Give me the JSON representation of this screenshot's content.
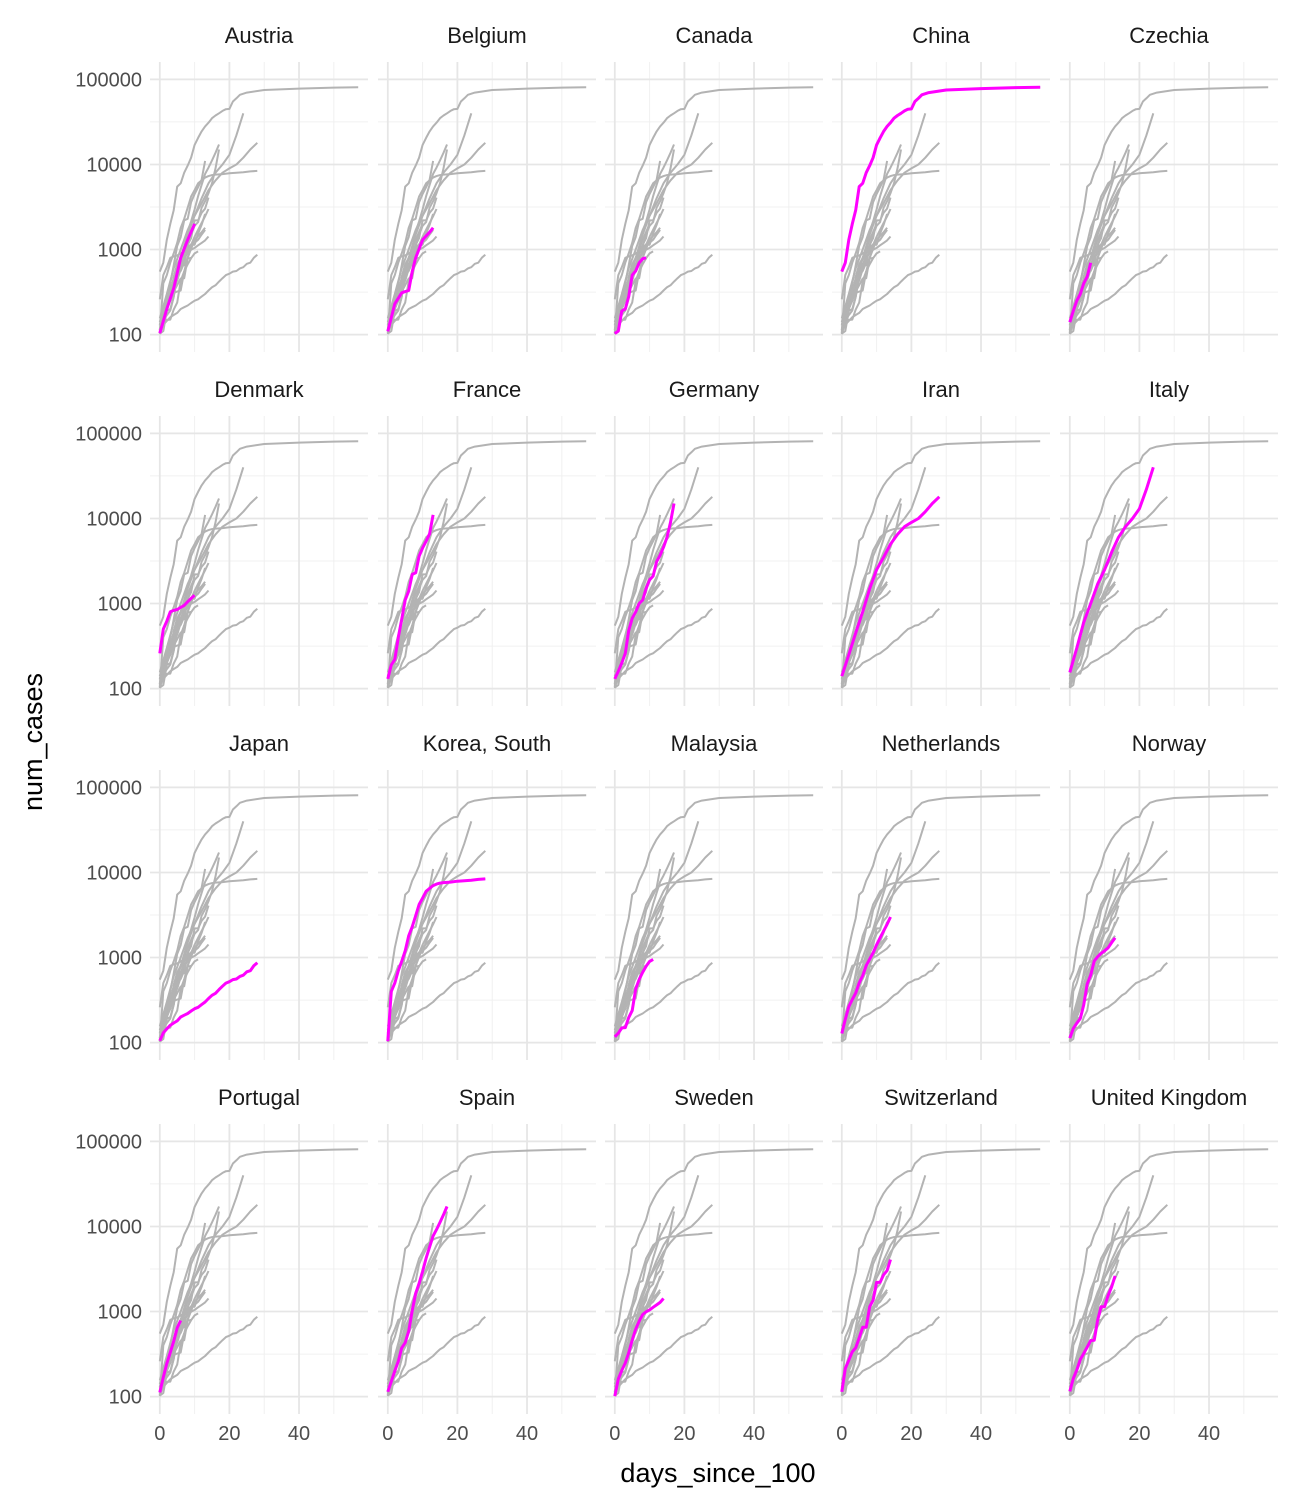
{
  "chart_data": {
    "type": "line",
    "facet_by": "country",
    "facet_layout": {
      "rows": 4,
      "cols": 5
    },
    "xlabel": "days_since_100",
    "ylabel": "num_cases",
    "xlim": [
      0,
      57
    ],
    "ylim": [
      100,
      100000
    ],
    "y_scale": "log10",
    "x_ticks": [
      0,
      20,
      40
    ],
    "y_ticks": [
      100,
      1000,
      10000,
      100000
    ],
    "x_tick_labels": [
      "0",
      "20",
      "40"
    ],
    "y_tick_labels": [
      "100",
      "1000",
      "10000",
      "100000"
    ],
    "grid": true,
    "colors": {
      "background_series": "#b3b3b3",
      "highlight": "#ff00ff",
      "grid": "#e6e6e6"
    },
    "series": [
      {
        "name": "Austria",
        "x": [
          0,
          2,
          4,
          6,
          8,
          10
        ],
        "y": [
          104,
          200,
          350,
          800,
          1300,
          2000
        ]
      },
      {
        "name": "Belgium",
        "x": [
          0,
          2,
          4,
          5,
          6,
          7,
          8,
          10,
          12,
          13
        ],
        "y": [
          109,
          230,
          310,
          320,
          330,
          550,
          800,
          1300,
          1600,
          1800
        ]
      },
      {
        "name": "Canada",
        "x": [
          0,
          1,
          2,
          3,
          4,
          5,
          6,
          7,
          8,
          9
        ],
        "y": [
          103,
          110,
          190,
          200,
          280,
          500,
          560,
          700,
          780,
          800
        ]
      },
      {
        "name": "China",
        "x": [
          0,
          1,
          2,
          3,
          4,
          5,
          6,
          7,
          8,
          9,
          10,
          11,
          12,
          13,
          14,
          15,
          16,
          17,
          18,
          19,
          20,
          21,
          22,
          23,
          25,
          30,
          40,
          50,
          57
        ],
        "y": [
          550,
          700,
          1300,
          2000,
          2900,
          5500,
          6000,
          8000,
          9700,
          12000,
          17000,
          20500,
          24500,
          28000,
          31000,
          35000,
          37600,
          40000,
          42600,
          44600,
          45000,
          55000,
          60000,
          66000,
          70000,
          75000,
          78000,
          80000,
          81000
        ]
      },
      {
        "name": "Czechia",
        "x": [
          0,
          1,
          2,
          3,
          4,
          5,
          6
        ],
        "y": [
          140,
          190,
          250,
          300,
          400,
          480,
          700
        ]
      },
      {
        "name": "Denmark",
        "x": [
          0,
          1,
          2,
          3,
          4,
          5,
          6,
          7,
          8,
          9,
          10
        ],
        "y": [
          260,
          500,
          620,
          800,
          830,
          850,
          900,
          950,
          1050,
          1150,
          1250
        ]
      },
      {
        "name": "France",
        "x": [
          0,
          1,
          2,
          3,
          4,
          5,
          6,
          7,
          8,
          9,
          10,
          11,
          12,
          13
        ],
        "y": [
          130,
          190,
          220,
          400,
          650,
          1100,
          1400,
          2200,
          2300,
          3600,
          4500,
          5400,
          6600,
          11000
        ]
      },
      {
        "name": "Germany",
        "x": [
          0,
          1,
          2,
          3,
          4,
          5,
          6,
          7,
          8,
          9,
          10,
          11,
          12,
          13,
          14,
          15,
          16,
          17
        ],
        "y": [
          130,
          160,
          200,
          260,
          480,
          670,
          800,
          1000,
          1100,
          1500,
          1900,
          2100,
          3100,
          3700,
          4600,
          6000,
          9000,
          15000
        ]
      },
      {
        "name": "Iran",
        "x": [
          0,
          2,
          4,
          6,
          8,
          10,
          12,
          14,
          16,
          18,
          20,
          22,
          24,
          26,
          28
        ],
        "y": [
          140,
          250,
          450,
          800,
          1500,
          2500,
          3500,
          5000,
          6500,
          8000,
          9000,
          10000,
          12000,
          15000,
          18000
        ]
      },
      {
        "name": "Italy",
        "x": [
          0,
          2,
          4,
          6,
          8,
          10,
          12,
          14,
          16,
          18,
          20,
          22,
          24
        ],
        "y": [
          155,
          300,
          600,
          1000,
          1700,
          2500,
          4000,
          6000,
          8000,
          10000,
          13000,
          22000,
          40000
        ]
      },
      {
        "name": "Japan",
        "x": [
          0,
          1,
          2,
          3,
          4,
          5,
          6,
          7,
          8,
          9,
          10,
          11,
          12,
          13,
          14,
          15,
          16,
          17,
          18,
          19,
          20,
          21,
          22,
          23,
          24,
          25,
          26,
          27,
          28
        ],
        "y": [
          105,
          130,
          145,
          160,
          170,
          180,
          200,
          210,
          220,
          235,
          250,
          260,
          280,
          300,
          330,
          360,
          380,
          420,
          460,
          500,
          520,
          550,
          560,
          600,
          620,
          680,
          700,
          800,
          870
        ]
      },
      {
        "name": "Korea, South",
        "x": [
          0,
          1,
          2,
          3,
          4,
          5,
          6,
          7,
          8,
          9,
          10,
          11,
          12,
          13,
          14,
          15,
          16,
          18,
          20,
          22,
          24,
          26,
          28
        ],
        "y": [
          104,
          400,
          500,
          700,
          900,
          1200,
          1800,
          2300,
          3100,
          4200,
          5000,
          6000,
          6500,
          7000,
          7300,
          7500,
          7600,
          7700,
          7900,
          8000,
          8100,
          8300,
          8400
        ]
      },
      {
        "name": "Malaysia",
        "x": [
          0,
          1,
          2,
          3,
          4,
          5,
          6,
          7,
          8,
          9,
          10,
          11
        ],
        "y": [
          117,
          129,
          149,
          150,
          197,
          238,
          428,
          553,
          673,
          790,
          900,
          950
        ]
      },
      {
        "name": "Netherlands",
        "x": [
          0,
          1,
          2,
          3,
          4,
          5,
          6,
          7,
          8,
          9,
          10,
          11,
          12,
          13,
          14
        ],
        "y": [
          128,
          188,
          265,
          321,
          382,
          503,
          614,
          804,
          959,
          1135,
          1413,
          1705,
          2051,
          2460,
          2994
        ]
      },
      {
        "name": "Norway",
        "x": [
          0,
          1,
          2,
          3,
          4,
          5,
          6,
          7,
          8,
          9,
          10,
          11,
          12,
          13
        ],
        "y": [
          113,
          147,
          169,
          192,
          277,
          489,
          621,
          907,
          1023,
          1120,
          1200,
          1300,
          1500,
          1700
        ]
      },
      {
        "name": "Portugal",
        "x": [
          0,
          1,
          2,
          3,
          4,
          5,
          6
        ],
        "y": [
          112,
          169,
          245,
          331,
          448,
          642,
          785
        ]
      },
      {
        "name": "Spain",
        "x": [
          0,
          1,
          2,
          3,
          4,
          5,
          6,
          7,
          8,
          9,
          10,
          11,
          12,
          13,
          14,
          15,
          16,
          17
        ],
        "y": [
          114,
          151,
          200,
          261,
          374,
          430,
          589,
          1024,
          1639,
          2140,
          2965,
          4231,
          5753,
          7753,
          9191,
          11178,
          13716,
          17147
        ]
      },
      {
        "name": "Sweden",
        "x": [
          0,
          1,
          2,
          3,
          4,
          5,
          6,
          7,
          8,
          9,
          10,
          11,
          12,
          13,
          14
        ],
        "y": [
          101,
          161,
          203,
          248,
          326,
          461,
          620,
          771,
          923,
          994,
          1046,
          1121,
          1196,
          1279,
          1423
        ]
      },
      {
        "name": "Switzerland",
        "x": [
          0,
          1,
          2,
          3,
          4,
          5,
          6,
          7,
          8,
          9,
          10,
          11,
          12,
          13,
          14
        ],
        "y": [
          114,
          214,
          268,
          337,
          374,
          491,
          652,
          652,
          1139,
          1359,
          2200,
          2200,
          2700,
          3028,
          4075
        ]
      },
      {
        "name": "United Kingdom",
        "x": [
          0,
          1,
          2,
          3,
          4,
          5,
          6,
          7,
          8,
          9,
          10,
          11,
          12,
          13
        ],
        "y": [
          115,
          163,
          206,
          273,
          321,
          382,
          456,
          460,
          798,
          1140,
          1140,
          1543,
          1950,
          2626
        ]
      }
    ]
  }
}
